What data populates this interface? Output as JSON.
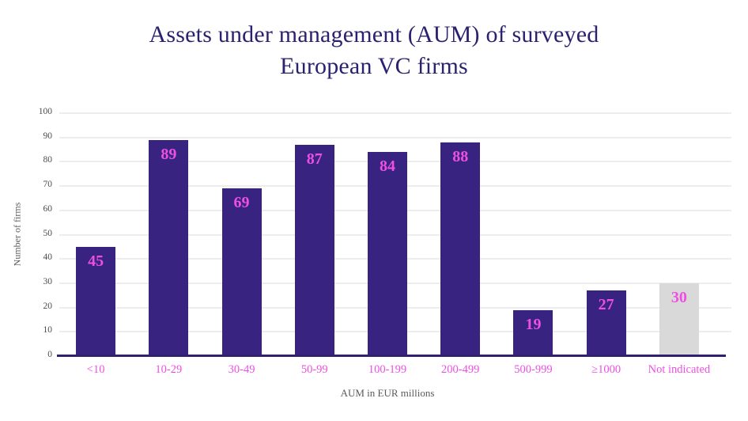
{
  "title": {
    "line1": "Assets under management (AUM) of surveyed",
    "line2": "European VC firms"
  },
  "chart_data": {
    "type": "bar",
    "title": "Assets under management (AUM) of surveyed European VC firms",
    "categories": [
      "<10",
      "10-29",
      "30-49",
      "50-99",
      "100-199",
      "200-499",
      "500-999",
      "≥1000",
      "Not indicated"
    ],
    "values": [
      45,
      89,
      69,
      87,
      84,
      88,
      19,
      27,
      30
    ],
    "muted_categories": [
      "Not indicated"
    ],
    "xlabel": "AUM in EUR millions",
    "ylabel": "Number of firms",
    "ylim": [
      0,
      100
    ],
    "ytick_step": 10,
    "grid": true,
    "legend": false
  },
  "colors": {
    "background": "#ffffff",
    "title": "#2b2171",
    "bar": "#382480",
    "bar_muted": "#d9d9d9",
    "value_label": "#ee4fe2",
    "category_label": "#ee4fe2",
    "tick_label": "#4b4b4b",
    "axis_title": "#5a5a5a",
    "gridline": "#ededed",
    "baseline": "#31206f"
  }
}
